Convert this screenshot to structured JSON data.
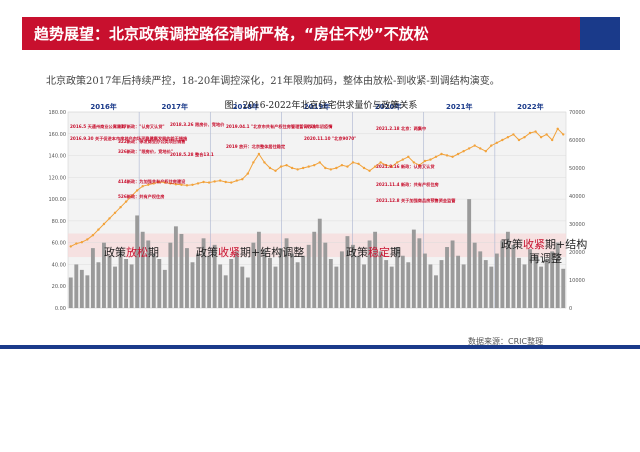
{
  "header": {
    "title": "趋势展望：北京政策调控路径清晰严格，“房住不炒”不放松",
    "accent_color": "#c8102e",
    "secondary_color": "#1a3a8a"
  },
  "intro_text": "北京政策2017年后持续严控，18-20年调控深化，21年限购加码，整体由放松-到收紧-到调结构演变。",
  "source_text": "数据来源：CRIC整理",
  "chart_data": {
    "type": "bar",
    "title": "图：2016-2022年北京住宅供求量价与政策关系",
    "left_axis": {
      "ticks": [
        "0.00",
        "20.00",
        "40.00",
        "60.00",
        "80.00",
        "100.00",
        "120.00",
        "140.00",
        "160.00",
        "180.00"
      ],
      "ylim": [
        0,
        180
      ]
    },
    "right_axis": {
      "ticks": [
        "0",
        "10000",
        "20000",
        "30000",
        "40000",
        "50000",
        "60000",
        "70000"
      ],
      "ylim": [
        0,
        70000
      ]
    },
    "years": [
      "2016年",
      "2017年",
      "2018年",
      "2019年",
      "2020年",
      "2021年",
      "2022年"
    ],
    "bar_values": [
      28,
      40,
      35,
      30,
      55,
      42,
      60,
      48,
      38,
      52,
      45,
      40,
      85,
      70,
      62,
      50,
      45,
      35,
      60,
      75,
      68,
      55,
      42,
      50,
      64,
      48,
      58,
      40,
      30,
      45,
      52,
      38,
      28,
      60,
      70,
      54,
      46,
      38,
      55,
      64,
      50,
      42,
      48,
      58,
      70,
      82,
      60,
      45,
      38,
      52,
      66,
      58,
      48,
      40,
      62,
      70,
      52,
      44,
      38,
      56,
      48,
      42,
      72,
      64,
      50,
      40,
      30,
      44,
      56,
      62,
      48,
      40,
      100,
      60,
      52,
      44,
      38,
      50,
      62,
      70,
      58,
      46,
      40,
      54,
      48,
      38,
      44,
      52,
      60,
      36
    ],
    "line_values": [
      22000,
      23000,
      23500,
      24500,
      26000,
      28000,
      30000,
      32000,
      34000,
      36000,
      38000,
      40000,
      42000,
      43500,
      44000,
      44500,
      45000,
      44800,
      44500,
      44200,
      44000,
      43800,
      44000,
      44500,
      45000,
      44800,
      45200,
      45500,
      45000,
      44800,
      45500,
      46000,
      48000,
      52000,
      55000,
      52000,
      50000,
      49000,
      50500,
      51000,
      50000,
      49500,
      50000,
      50500,
      51000,
      52000,
      50000,
      49500,
      50000,
      51000,
      50500,
      52000,
      51500,
      50000,
      49000,
      50500,
      52000,
      51000,
      50500,
      52000,
      53000,
      54000,
      52000,
      51000,
      52500,
      53000,
      54000,
      55000,
      54500,
      54000,
      55000,
      56000,
      57000,
      58000,
      57000,
      56000,
      58000,
      59000,
      60000,
      61000,
      62000,
      60000,
      61000,
      62500,
      63000,
      61000,
      62000,
      60000,
      64000,
      62000
    ],
    "phase_labels": [
      {
        "text": "政策放松期",
        "highlight": "放松"
      },
      {
        "text": "政策收紧期+结构调整",
        "highlight": "收紧"
      },
      {
        "text": "政策稳定期",
        "highlight": "稳定"
      },
      {
        "text": "政策收紧期+结构再调整",
        "highlight": "收紧"
      }
    ],
    "annotations": [
      "2016.5 天通州商业公寓限购",
      "2016.9.30 关于促进本市房地产市场平稳健康发展的若干措施",
      "317新政：\"认房又认贷\"",
      "322新政：停发商业办公类项目销售",
      "326新政：\"限房价，竞地价\"",
      "414新政：为加强共有产权住房建设",
      "526新政：共有产权住房",
      "2018.3.26 限房价、竞地价",
      "2018.5.28 整合13.1",
      "2019.04.1 \"北京市共有产权住房管理暂行办法\"",
      "2019 放开：北京整体居住稳定",
      "2020年初疫情",
      "2020.11.10 \"北京9070\"",
      "2021.2.18 北京：两集中",
      "2021.8.16 新政：认房又认贷",
      "2021.11.4 新政：共有产权住房",
      "2021.12.8 关于加强商品房预售资金监管"
    ]
  }
}
